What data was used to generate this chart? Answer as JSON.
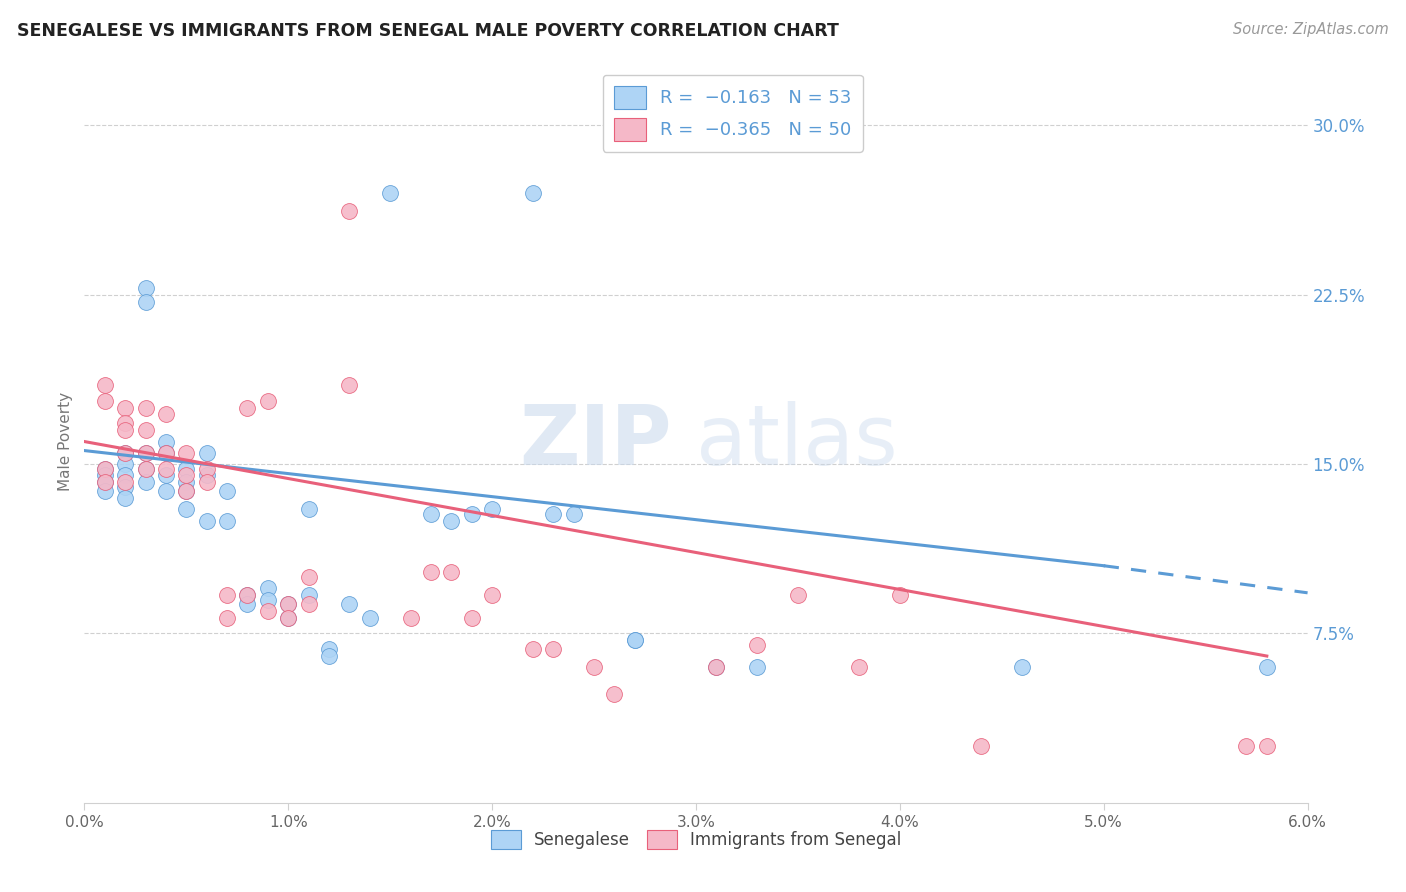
{
  "title": "SENEGALESE VS IMMIGRANTS FROM SENEGAL MALE POVERTY CORRELATION CHART",
  "source": "Source: ZipAtlas.com",
  "ylabel": "Male Poverty",
  "ytick_labels": [
    "7.5%",
    "15.0%",
    "22.5%",
    "30.0%"
  ],
  "ytick_values": [
    0.075,
    0.15,
    0.225,
    0.3
  ],
  "xlim": [
    0.0,
    0.06
  ],
  "ylim": [
    0.0,
    0.32
  ],
  "xtick_positions": [
    0.0,
    0.01,
    0.02,
    0.03,
    0.04,
    0.05,
    0.06
  ],
  "xtick_labels": [
    "0.0%",
    "1.0%",
    "2.0%",
    "3.0%",
    "4.0%",
    "5.0%",
    "6.0%"
  ],
  "legend_blue_r": "R =  −0.163",
  "legend_blue_n": "N = 53",
  "legend_pink_r": "R =  −0.365",
  "legend_pink_n": "N = 50",
  "blue_color": "#aed4f5",
  "pink_color": "#f5b8c8",
  "blue_line_color": "#5b9bd5",
  "pink_line_color": "#e8607a",
  "blue_scatter": [
    [
      0.001,
      0.148
    ],
    [
      0.001,
      0.145
    ],
    [
      0.001,
      0.142
    ],
    [
      0.001,
      0.138
    ],
    [
      0.002,
      0.155
    ],
    [
      0.002,
      0.15
    ],
    [
      0.002,
      0.145
    ],
    [
      0.002,
      0.14
    ],
    [
      0.002,
      0.135
    ],
    [
      0.003,
      0.228
    ],
    [
      0.003,
      0.222
    ],
    [
      0.003,
      0.155
    ],
    [
      0.003,
      0.148
    ],
    [
      0.003,
      0.142
    ],
    [
      0.004,
      0.16
    ],
    [
      0.004,
      0.155
    ],
    [
      0.004,
      0.145
    ],
    [
      0.004,
      0.138
    ],
    [
      0.005,
      0.148
    ],
    [
      0.005,
      0.142
    ],
    [
      0.005,
      0.138
    ],
    [
      0.005,
      0.13
    ],
    [
      0.006,
      0.155
    ],
    [
      0.006,
      0.145
    ],
    [
      0.006,
      0.125
    ],
    [
      0.007,
      0.138
    ],
    [
      0.007,
      0.125
    ],
    [
      0.008,
      0.092
    ],
    [
      0.008,
      0.088
    ],
    [
      0.009,
      0.095
    ],
    [
      0.009,
      0.09
    ],
    [
      0.01,
      0.088
    ],
    [
      0.01,
      0.082
    ],
    [
      0.011,
      0.13
    ],
    [
      0.011,
      0.092
    ],
    [
      0.012,
      0.068
    ],
    [
      0.012,
      0.065
    ],
    [
      0.013,
      0.088
    ],
    [
      0.014,
      0.082
    ],
    [
      0.015,
      0.27
    ],
    [
      0.017,
      0.128
    ],
    [
      0.018,
      0.125
    ],
    [
      0.019,
      0.128
    ],
    [
      0.02,
      0.13
    ],
    [
      0.022,
      0.27
    ],
    [
      0.023,
      0.128
    ],
    [
      0.024,
      0.128
    ],
    [
      0.027,
      0.072
    ],
    [
      0.027,
      0.072
    ],
    [
      0.031,
      0.06
    ],
    [
      0.033,
      0.06
    ],
    [
      0.046,
      0.06
    ],
    [
      0.058,
      0.06
    ]
  ],
  "pink_scatter": [
    [
      0.001,
      0.185
    ],
    [
      0.001,
      0.178
    ],
    [
      0.001,
      0.148
    ],
    [
      0.001,
      0.142
    ],
    [
      0.002,
      0.175
    ],
    [
      0.002,
      0.168
    ],
    [
      0.002,
      0.165
    ],
    [
      0.002,
      0.155
    ],
    [
      0.002,
      0.142
    ],
    [
      0.003,
      0.175
    ],
    [
      0.003,
      0.165
    ],
    [
      0.003,
      0.155
    ],
    [
      0.003,
      0.148
    ],
    [
      0.004,
      0.172
    ],
    [
      0.004,
      0.155
    ],
    [
      0.004,
      0.148
    ],
    [
      0.005,
      0.155
    ],
    [
      0.005,
      0.145
    ],
    [
      0.005,
      0.138
    ],
    [
      0.006,
      0.148
    ],
    [
      0.006,
      0.142
    ],
    [
      0.007,
      0.092
    ],
    [
      0.007,
      0.082
    ],
    [
      0.008,
      0.175
    ],
    [
      0.008,
      0.092
    ],
    [
      0.009,
      0.178
    ],
    [
      0.009,
      0.085
    ],
    [
      0.01,
      0.088
    ],
    [
      0.01,
      0.082
    ],
    [
      0.011,
      0.1
    ],
    [
      0.011,
      0.088
    ],
    [
      0.013,
      0.262
    ],
    [
      0.013,
      0.185
    ],
    [
      0.016,
      0.082
    ],
    [
      0.017,
      0.102
    ],
    [
      0.018,
      0.102
    ],
    [
      0.019,
      0.082
    ],
    [
      0.02,
      0.092
    ],
    [
      0.022,
      0.068
    ],
    [
      0.023,
      0.068
    ],
    [
      0.025,
      0.06
    ],
    [
      0.026,
      0.048
    ],
    [
      0.031,
      0.06
    ],
    [
      0.033,
      0.07
    ],
    [
      0.035,
      0.092
    ],
    [
      0.038,
      0.06
    ],
    [
      0.04,
      0.092
    ],
    [
      0.044,
      0.025
    ],
    [
      0.057,
      0.025
    ],
    [
      0.058,
      0.025
    ]
  ],
  "watermark_zip": "ZIP",
  "watermark_atlas": "atlas",
  "grid_color": "#d0d0d0",
  "background_color": "#ffffff"
}
